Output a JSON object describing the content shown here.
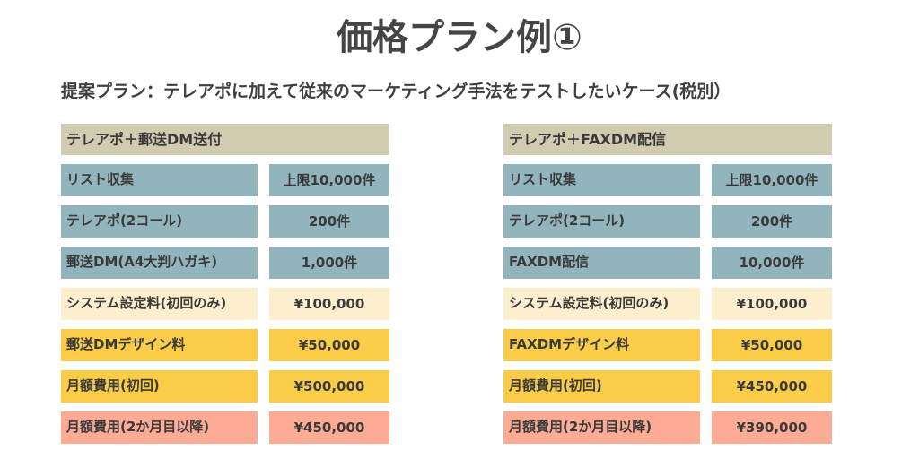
{
  "title": "価格プラン例①",
  "subtitle": "提案プラン：テレアポに加えて従来のマーケティング手法をテストしたいケース(税別）",
  "colors": {
    "header": "#d1cbaf",
    "blue": "#92b5bd",
    "cream": "#fdefcd",
    "yellow": "#fbcc47",
    "salmon": "#fdab94"
  },
  "left_plan": {
    "header": "テレアポ＋郵送DM送付",
    "rows": [
      {
        "label": "リスト収集",
        "value": "上限10,000件",
        "color": "blue"
      },
      {
        "label": "テレアポ(2コール)",
        "value": "200件",
        "color": "blue"
      },
      {
        "label": "郵送DM(A4大判ハガキ)",
        "value": "1,000件",
        "color": "blue"
      },
      {
        "label": "システム設定料(初回のみ)",
        "value": "¥100,000",
        "color": "cream"
      },
      {
        "label": "郵送DMデザイン料",
        "value": "¥50,000",
        "color": "yellow"
      },
      {
        "label": "月額費用(初回)",
        "value": "¥500,000",
        "color": "yellow"
      },
      {
        "label": "月額費用(2か月目以降)",
        "value": "¥450,000",
        "color": "salmon"
      }
    ]
  },
  "right_plan": {
    "header": "テレアポ＋FAXDM配信",
    "rows": [
      {
        "label": "リスト収集",
        "value": "上限10,000件",
        "color": "blue"
      },
      {
        "label": "テレアポ(2コール)",
        "value": "200件",
        "color": "blue"
      },
      {
        "label": "FAXDM配信",
        "value": "10,000件",
        "color": "blue"
      },
      {
        "label": "システム設定料(初回のみ)",
        "value": "¥100,000",
        "color": "cream"
      },
      {
        "label": "FAXDMデザイン料",
        "value": "¥50,000",
        "color": "yellow"
      },
      {
        "label": "月額費用(初回)",
        "value": "¥450,000",
        "color": "yellow"
      },
      {
        "label": "月額費用(2か月目以降)",
        "value": "¥390,000",
        "color": "salmon"
      }
    ]
  }
}
